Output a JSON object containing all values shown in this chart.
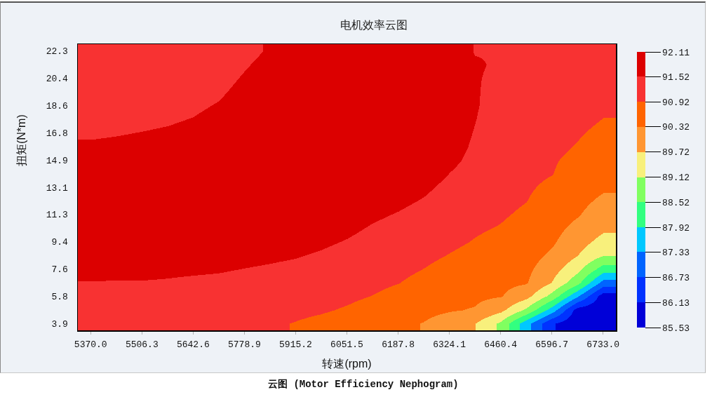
{
  "chart_data": {
    "type": "heatmap",
    "title": "电机效率云图",
    "xlabel": "转速(rpm)",
    "ylabel": "扭矩(N*m)",
    "annotations": [
      "云图 (Motor Efficiency Nephogram)"
    ],
    "categories": [
      "5370.0",
      null,
      "5506.3",
      null,
      "5642.6",
      null,
      "5778.9",
      null,
      "5915.2",
      null,
      "6051.5",
      null,
      "6187.8",
      null,
      "6324.1",
      null,
      "6460.4",
      null,
      "6596.7",
      null,
      "6733.0"
    ],
    "y_categories": [
      "22.3",
      null,
      "20.4",
      null,
      "18.6",
      null,
      "16.8",
      null,
      "14.9",
      null,
      "13.1",
      null,
      "11.3",
      null,
      "9.4",
      null,
      "7.6",
      null,
      "5.8",
      null,
      "3.9"
    ],
    "cells": [
      [
        91.1,
        91.1,
        91.1,
        91.1,
        91.1,
        91.14,
        91.34,
        91.59,
        91.77,
        91.88,
        91.95,
        91.97,
        91.97,
        91.89,
        91.74,
        91.5,
        91.5,
        91.5,
        91.5,
        91.42,
        91.31
      ],
      [
        91.1,
        91.1,
        91.1,
        91.1,
        91.12,
        91.21,
        91.46,
        91.71,
        91.84,
        91.95,
        92.0,
        92.0,
        92.0,
        91.93,
        91.76,
        91.56,
        91.47,
        91.45,
        91.43,
        91.35,
        91.23
      ],
      [
        91.1,
        91.1,
        91.12,
        91.14,
        91.2,
        91.33,
        91.58,
        91.82,
        91.91,
        92.0,
        92.0,
        92.0,
        92.0,
        91.93,
        91.76,
        91.55,
        91.43,
        91.4,
        91.36,
        91.27,
        91.15
      ],
      [
        91.13,
        91.15,
        91.18,
        91.23,
        91.31,
        91.44,
        91.69,
        91.93,
        91.97,
        92.0,
        92.0,
        92.0,
        92.0,
        91.93,
        91.76,
        91.55,
        91.4,
        91.34,
        91.3,
        91.2,
        91.07
      ],
      [
        91.23,
        91.26,
        91.29,
        91.34,
        91.42,
        91.56,
        91.8,
        92.0,
        92.0,
        92.0,
        92.0,
        92.0,
        92.0,
        91.93,
        91.75,
        91.55,
        91.37,
        91.29,
        91.23,
        91.13,
        90.99
      ],
      [
        91.35,
        91.38,
        91.41,
        91.46,
        91.54,
        91.68,
        91.9,
        92.0,
        92.0,
        92.0,
        92.0,
        92.0,
        92.0,
        91.93,
        91.72,
        91.53,
        91.33,
        91.24,
        91.17,
        91.05,
        90.91
      ],
      [
        91.46,
        91.49,
        91.53,
        91.58,
        91.66,
        91.79,
        91.98,
        92.0,
        92.0,
        92.0,
        92.0,
        92.0,
        92.0,
        91.93,
        91.69,
        91.5,
        91.29,
        91.19,
        91.11,
        90.97,
        90.81
      ],
      [
        91.58,
        91.61,
        91.65,
        91.7,
        91.78,
        91.88,
        92.0,
        92.0,
        92.0,
        92.0,
        92.0,
        92.0,
        91.99,
        91.9,
        91.65,
        91.47,
        91.24,
        91.13,
        91.04,
        90.89,
        90.7
      ],
      [
        91.7,
        91.73,
        91.76,
        91.81,
        91.89,
        91.96,
        92.0,
        92.0,
        92.0,
        92.0,
        92.0,
        92.0,
        91.95,
        91.83,
        91.6,
        91.43,
        91.2,
        91.08,
        90.97,
        90.79,
        90.6
      ],
      [
        91.82,
        91.85,
        91.88,
        91.92,
        91.98,
        92.0,
        92.0,
        92.0,
        92.0,
        92.0,
        92.0,
        91.99,
        91.84,
        91.71,
        91.51,
        91.37,
        91.15,
        91.03,
        90.93,
        90.68,
        90.5
      ],
      [
        91.93,
        91.96,
        91.99,
        92.0,
        92.0,
        92.0,
        92.0,
        92.0,
        92.0,
        92.0,
        92.0,
        91.82,
        91.72,
        91.6,
        91.41,
        91.29,
        91.1,
        90.98,
        90.82,
        90.58,
        90.39
      ],
      [
        92.0,
        92.0,
        92.0,
        92.0,
        92.0,
        92.0,
        92.0,
        92.0,
        91.99,
        91.94,
        91.85,
        91.71,
        91.61,
        91.49,
        91.31,
        91.21,
        91.04,
        90.93,
        90.71,
        90.47,
        90.22
      ],
      [
        92.0,
        92.0,
        92.0,
        92.0,
        92.0,
        92.0,
        91.97,
        91.93,
        91.89,
        91.82,
        91.72,
        91.59,
        91.49,
        91.37,
        91.2,
        91.12,
        90.97,
        90.84,
        90.6,
        90.36,
        90.03
      ],
      [
        91.97,
        91.95,
        91.95,
        91.93,
        91.91,
        91.9,
        91.86,
        91.82,
        91.78,
        91.71,
        91.61,
        91.48,
        91.38,
        91.26,
        91.1,
        90.98,
        90.89,
        90.74,
        90.5,
        90.17,
        89.82
      ],
      [
        91.92,
        91.84,
        91.84,
        91.82,
        91.8,
        91.78,
        91.74,
        91.7,
        91.66,
        91.59,
        91.49,
        91.37,
        91.27,
        91.14,
        91.01,
        90.89,
        90.78,
        90.64,
        90.39,
        89.95,
        89.52
      ],
      [
        91.85,
        91.72,
        91.72,
        91.71,
        91.69,
        91.66,
        91.63,
        91.59,
        91.55,
        91.47,
        91.37,
        91.25,
        91.15,
        91.03,
        90.9,
        90.78,
        90.67,
        90.55,
        90.22,
        89.73,
        89.14
      ],
      [
        91.65,
        91.61,
        91.61,
        91.58,
        91.57,
        91.55,
        91.51,
        91.47,
        91.42,
        91.34,
        91.25,
        91.14,
        91.04,
        90.91,
        90.76,
        90.66,
        90.57,
        90.45,
        89.96,
        89.29,
        88.2
      ],
      [
        91.5,
        91.5,
        91.5,
        91.49,
        91.46,
        91.44,
        91.4,
        91.35,
        91.29,
        91.22,
        91.13,
        91.03,
        90.93,
        90.77,
        90.63,
        90.54,
        90.46,
        90.36,
        89.69,
        88.71,
        87.07
      ],
      [
        91.4,
        91.4,
        91.4,
        91.38,
        91.36,
        91.32,
        91.28,
        91.23,
        91.16,
        91.09,
        91.01,
        90.91,
        90.77,
        90.62,
        90.5,
        90.43,
        90.35,
        89.92,
        88.9,
        87.41,
        85.8
      ],
      [
        91.3,
        91.3,
        91.3,
        91.28,
        91.25,
        91.21,
        91.16,
        91.1,
        91.03,
        90.97,
        90.87,
        90.74,
        90.6,
        90.46,
        90.36,
        90.28,
        89.86,
        89.0,
        87.62,
        85.85,
        85.66
      ],
      [
        91.19,
        91.19,
        91.19,
        91.18,
        91.15,
        91.1,
        91.04,
        90.98,
        90.9,
        90.8,
        90.67,
        90.56,
        90.43,
        90.3,
        90.06,
        89.73,
        89.0,
        87.55,
        86.2,
        85.67,
        85.55
      ]
    ],
    "clim": [
      85.53,
      92.11
    ],
    "cticks": [
      85.53,
      86.13,
      86.73,
      87.33,
      87.92,
      88.52,
      89.12,
      89.72,
      90.32,
      90.92,
      91.52,
      92.11
    ],
    "colors": [
      "#0000d8",
      "#0032ff",
      "#0064ff",
      "#00c8ff",
      "#32ff80",
      "#80ff60",
      "#f8f07c",
      "#ff9632",
      "#ff6400",
      "#f83232",
      "#dc0000"
    ]
  }
}
